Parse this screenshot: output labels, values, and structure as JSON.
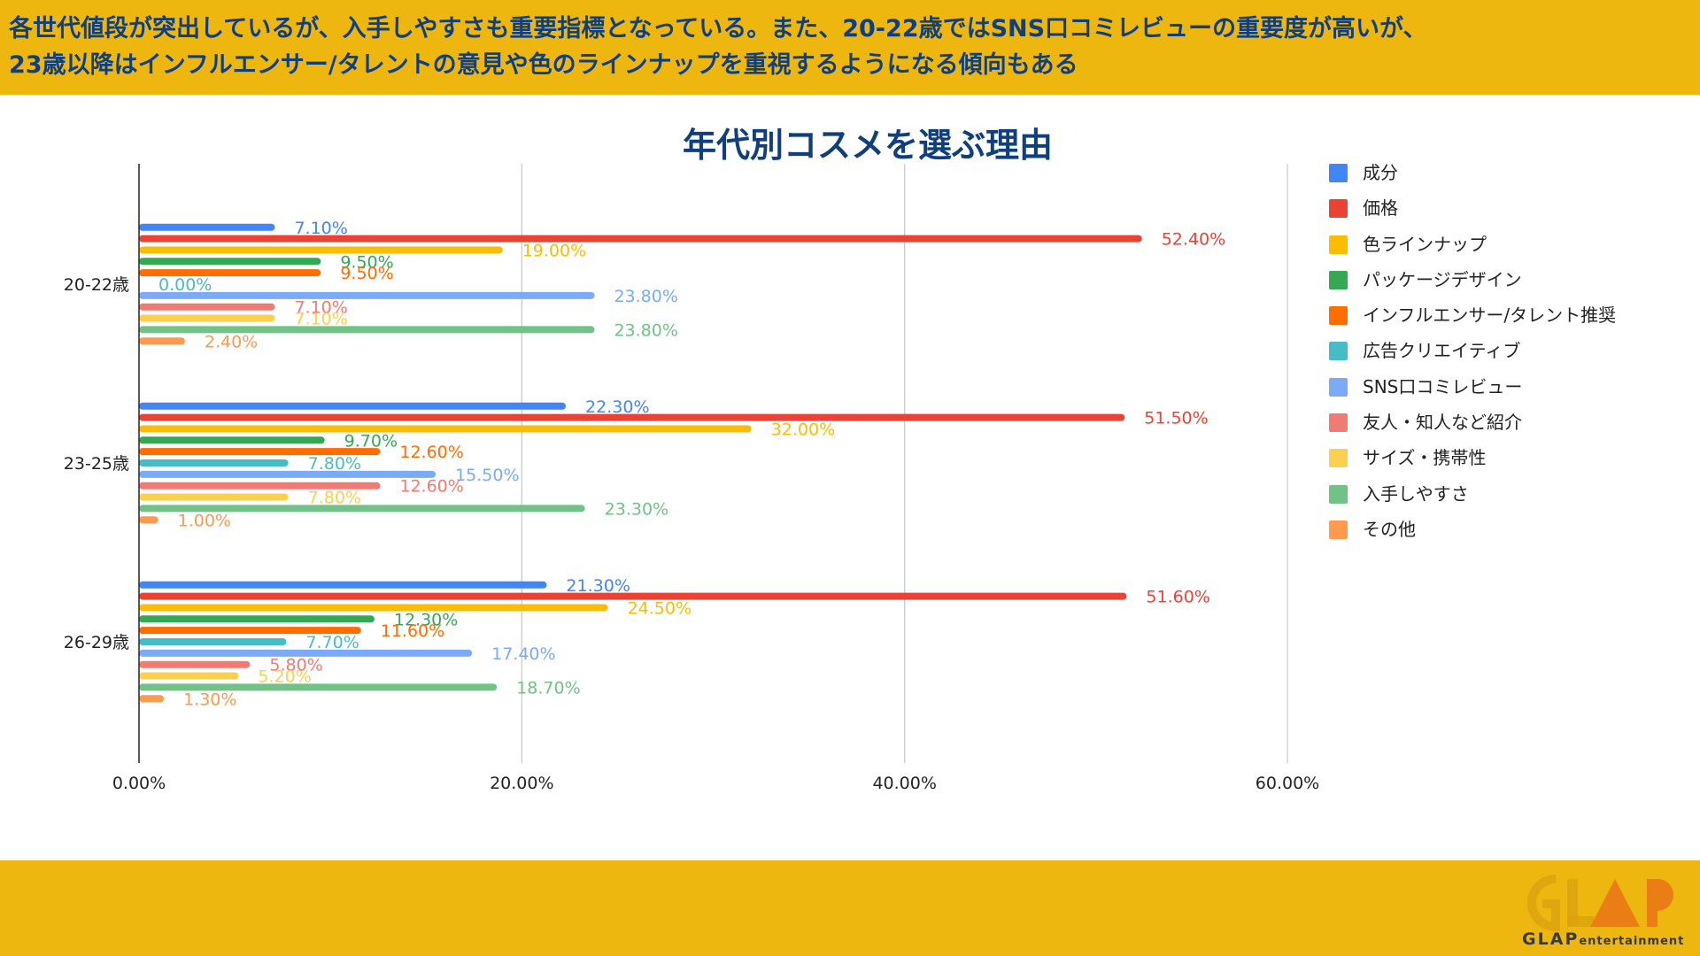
{
  "header": {
    "line1": "各世代値段が突出しているが、入手しやすさも重要指標となっている。また、20-22歳ではSNS口コミレビューの重要度が高いが、",
    "line2": "23歳以降はインフルエンサー/タレントの意見や色のラインナップを重視するようになる傾向もある"
  },
  "colors": {
    "banner": "#edb70f",
    "title": "#0f3f7f",
    "series": [
      "#4285f4",
      "#ea4335",
      "#fbbc04",
      "#34a853",
      "#ff6d01",
      "#46bdc6",
      "#7baaf7",
      "#f07b72",
      "#fcd04f",
      "#71c287",
      "#ff994d"
    ]
  },
  "logo": {
    "word": "GLAP",
    "sub": "entertainment"
  },
  "chart_data": {
    "type": "bar",
    "orientation": "horizontal",
    "title": "年代別コスメを選ぶ理由",
    "categories": [
      "20-22歳",
      "23-25歳",
      "26-29歳"
    ],
    "series": [
      {
        "name": "成分",
        "values": [
          7.1,
          22.3,
          21.3
        ],
        "labels": [
          "7.10%",
          "22.30%",
          "21.30%"
        ]
      },
      {
        "name": "価格",
        "values": [
          52.4,
          51.5,
          51.6
        ],
        "labels": [
          "52.40%",
          "51.50%",
          "51.60%"
        ]
      },
      {
        "name": "色ラインナップ",
        "values": [
          19.0,
          32.0,
          24.5
        ],
        "labels": [
          "19.00%",
          "32.00%",
          "24.50%"
        ]
      },
      {
        "name": "パッケージデザイン",
        "values": [
          9.5,
          9.7,
          12.3
        ],
        "labels": [
          "9.50%",
          "9.70%",
          "12.30%"
        ]
      },
      {
        "name": "インフルエンサー/タレント推奨",
        "values": [
          9.5,
          12.6,
          11.6
        ],
        "labels": [
          "9.50%",
          "12.60%",
          "11.60%"
        ]
      },
      {
        "name": "広告クリエイティブ",
        "values": [
          0.0,
          7.8,
          7.7
        ],
        "labels": [
          "0.00%",
          "7.80%",
          "7.70%"
        ]
      },
      {
        "name": "SNS口コミレビュー",
        "values": [
          23.8,
          15.5,
          17.4
        ],
        "labels": [
          "23.80%",
          "15.50%",
          "17.40%"
        ]
      },
      {
        "name": "友人・知人など紹介",
        "values": [
          7.1,
          12.6,
          5.8
        ],
        "labels": [
          "7.10%",
          "12.60%",
          "5.80%"
        ]
      },
      {
        "name": "サイズ・携帯性",
        "values": [
          7.1,
          7.8,
          5.2
        ],
        "labels": [
          "7.10%",
          "7.80%",
          "5.20%"
        ]
      },
      {
        "name": "入手しやすさ",
        "values": [
          23.8,
          23.3,
          18.7
        ],
        "labels": [
          "23.80%",
          "23.30%",
          "18.70%"
        ]
      },
      {
        "name": "その他",
        "values": [
          2.4,
          1.0,
          1.3
        ],
        "labels": [
          "2.40%",
          "1.00%",
          "1.30%"
        ]
      }
    ],
    "xlim": [
      0,
      60
    ],
    "xticks": [
      0,
      20,
      40,
      60
    ],
    "xtick_labels": [
      "0.00%",
      "20.00%",
      "40.00%",
      "60.00%"
    ],
    "grid": true,
    "legend": "right"
  }
}
